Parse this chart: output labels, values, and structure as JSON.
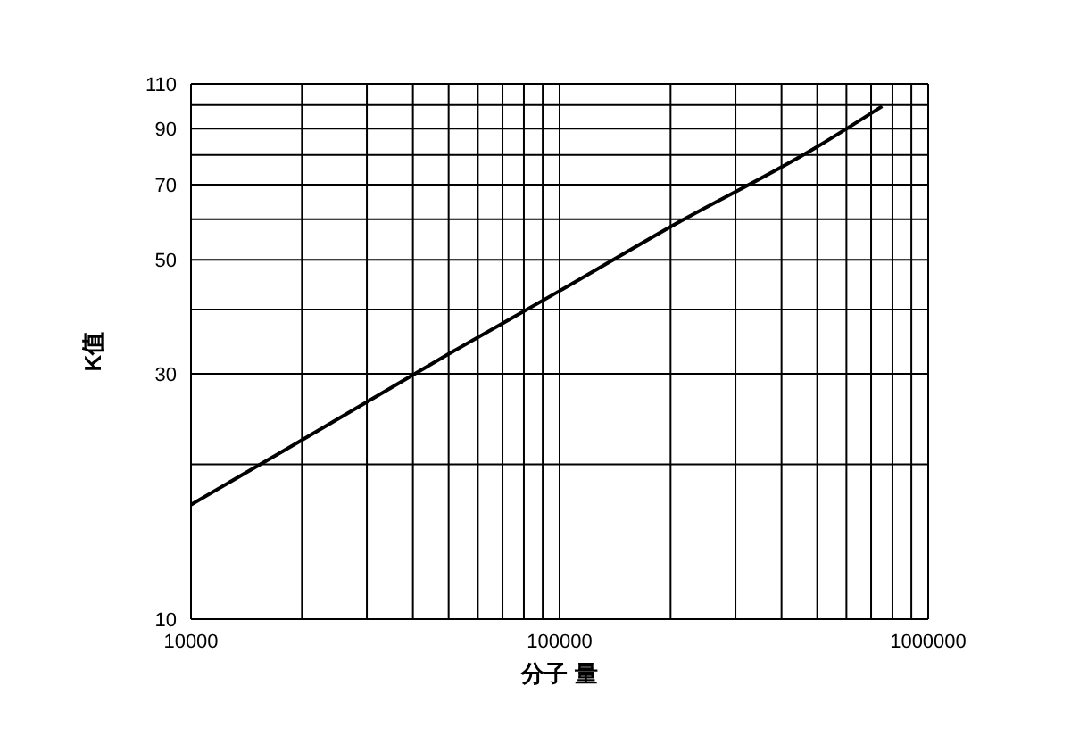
{
  "chart_data": {
    "type": "line",
    "xlabel": "分子 量",
    "ylabel": "K值",
    "log": "xy",
    "grid": true,
    "legend": false,
    "marker": "none",
    "line_style": "solid",
    "x": [
      10000,
      20000,
      50000,
      100000,
      200000,
      500000,
      750000
    ],
    "series": [
      {
        "color": "#000000",
        "values": [
          16.7,
          22.3,
          32.8,
          43.5,
          58,
          83,
          99.5
        ]
      }
    ],
    "xlim": [
      10000,
      1000000
    ],
    "xticks": [
      10000,
      {
        "value": 20000,
        "label": null
      },
      {
        "value": 30000,
        "label": null
      },
      {
        "value": 40000,
        "label": null
      },
      {
        "value": 50000,
        "label": null
      },
      {
        "value": 60000,
        "label": null
      },
      {
        "value": 70000,
        "label": null
      },
      {
        "value": 80000,
        "label": null
      },
      {
        "value": 90000,
        "label": null
      },
      100000,
      {
        "value": 200000,
        "label": null
      },
      {
        "value": 300000,
        "label": null
      },
      {
        "value": 400000,
        "label": null
      },
      {
        "value": 500000,
        "label": null
      },
      {
        "value": 600000,
        "label": null
      },
      {
        "value": 700000,
        "label": null
      },
      {
        "value": 800000,
        "label": null
      },
      {
        "value": 900000,
        "label": null
      },
      1000000
    ],
    "ylim": [
      10,
      110
    ],
    "yticks": [
      10,
      {
        "value": 20,
        "label": null
      },
      30,
      {
        "value": 40,
        "label": null
      },
      50,
      {
        "value": 60,
        "label": null
      },
      70,
      {
        "value": 80,
        "label": null
      },
      90,
      {
        "value": 100,
        "label": null
      },
      110
    ]
  }
}
